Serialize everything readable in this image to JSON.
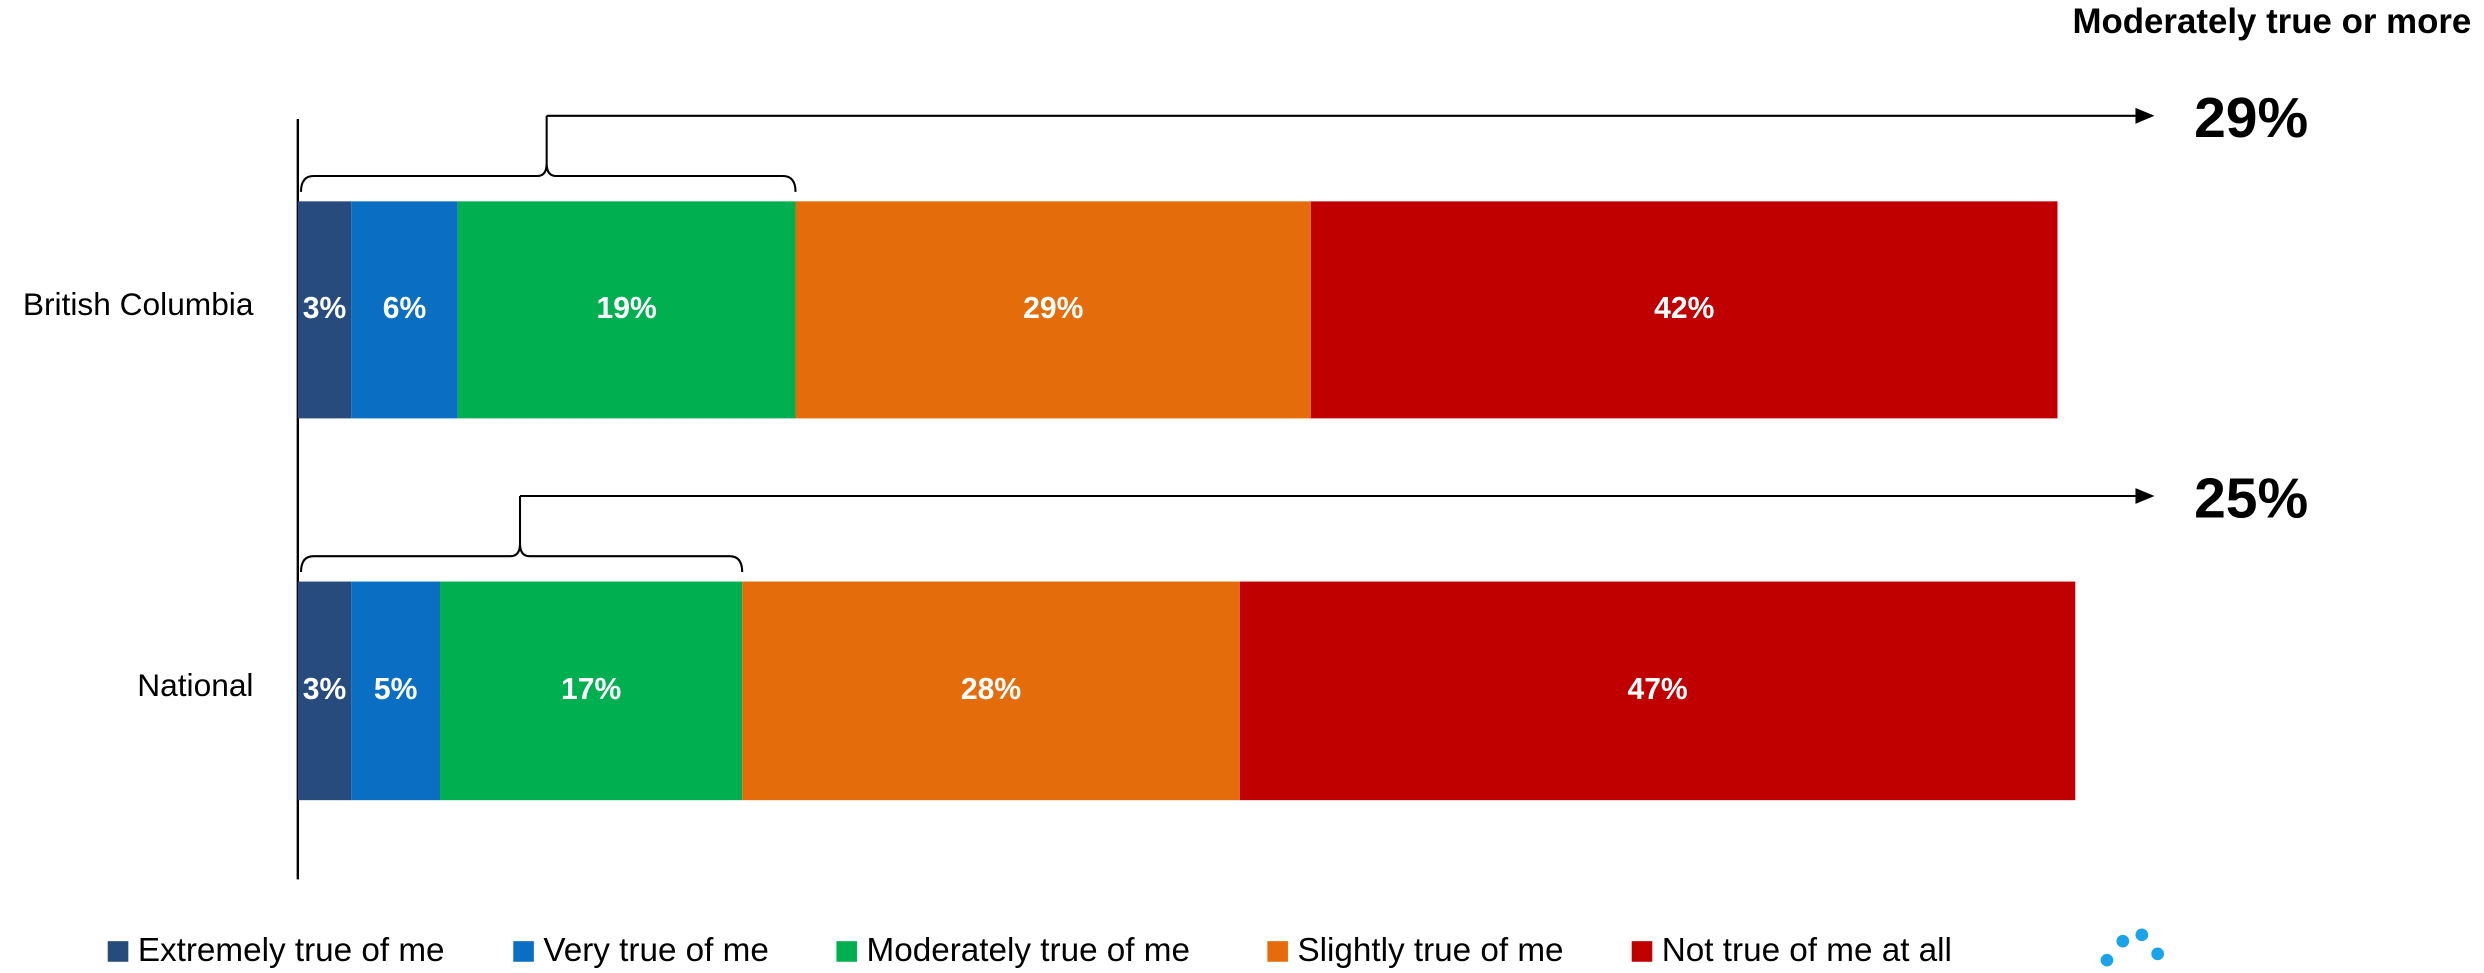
{
  "chart_data": {
    "type": "stacked_bar_horizontal",
    "categories": [
      "British Columbia",
      "National"
    ],
    "xlim": [
      0,
      100
    ],
    "series": [
      {
        "name": "Extremely true of me",
        "color": "#264b7c",
        "values": [
          3,
          3
        ],
        "value_labels": [
          "3%",
          "3%"
        ]
      },
      {
        "name": "Very true of me",
        "color": "#0a6fc2",
        "values": [
          6,
          5
        ],
        "value_labels": [
          "6%",
          "5%"
        ]
      },
      {
        "name": "Moderately true of me",
        "color": "#00b050",
        "values": [
          19,
          17
        ],
        "value_labels": [
          "19%",
          "17%"
        ]
      },
      {
        "name": "Slightly true of me",
        "color": "#e46c0a",
        "values": [
          29,
          28
        ],
        "value_labels": [
          "29%",
          "28%"
        ]
      },
      {
        "name": "Not true of me at all",
        "color": "#c00000",
        "values": [
          42,
          47
        ],
        "value_labels": [
          "42%",
          "47%"
        ]
      }
    ],
    "summary_title": "Moderately true or more",
    "summary_values": [
      29,
      25
    ],
    "summary_labels": [
      "29%",
      "25%"
    ]
  }
}
